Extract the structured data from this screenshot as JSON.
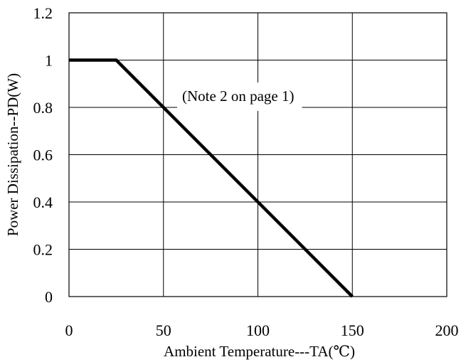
{
  "chart_data": {
    "type": "line",
    "xlabel": "Ambient Temperature---TA(℃)",
    "ylabel": "Power Dissipation--PD(W)",
    "xlim": [
      0,
      200
    ],
    "ylim": [
      0,
      1.2
    ],
    "x_ticks": [
      0,
      50,
      100,
      150,
      200
    ],
    "x_tick_labels": [
      "0",
      "50",
      "100",
      "150",
      "200"
    ],
    "y_ticks": [
      0,
      0.2,
      0.4,
      0.6,
      0.8,
      1.0,
      1.2
    ],
    "y_tick_labels": [
      "0",
      "0.2",
      "0.4",
      "0.6",
      "0.8",
      "1",
      "1.2"
    ],
    "grid": true,
    "series": [
      {
        "x": [
          0,
          25,
          150
        ],
        "y": [
          1.0,
          1.0,
          0.0
        ]
      }
    ],
    "annotations": [
      {
        "text": "(Note 2 on page 1)"
      }
    ],
    "line_color": "#000000"
  }
}
